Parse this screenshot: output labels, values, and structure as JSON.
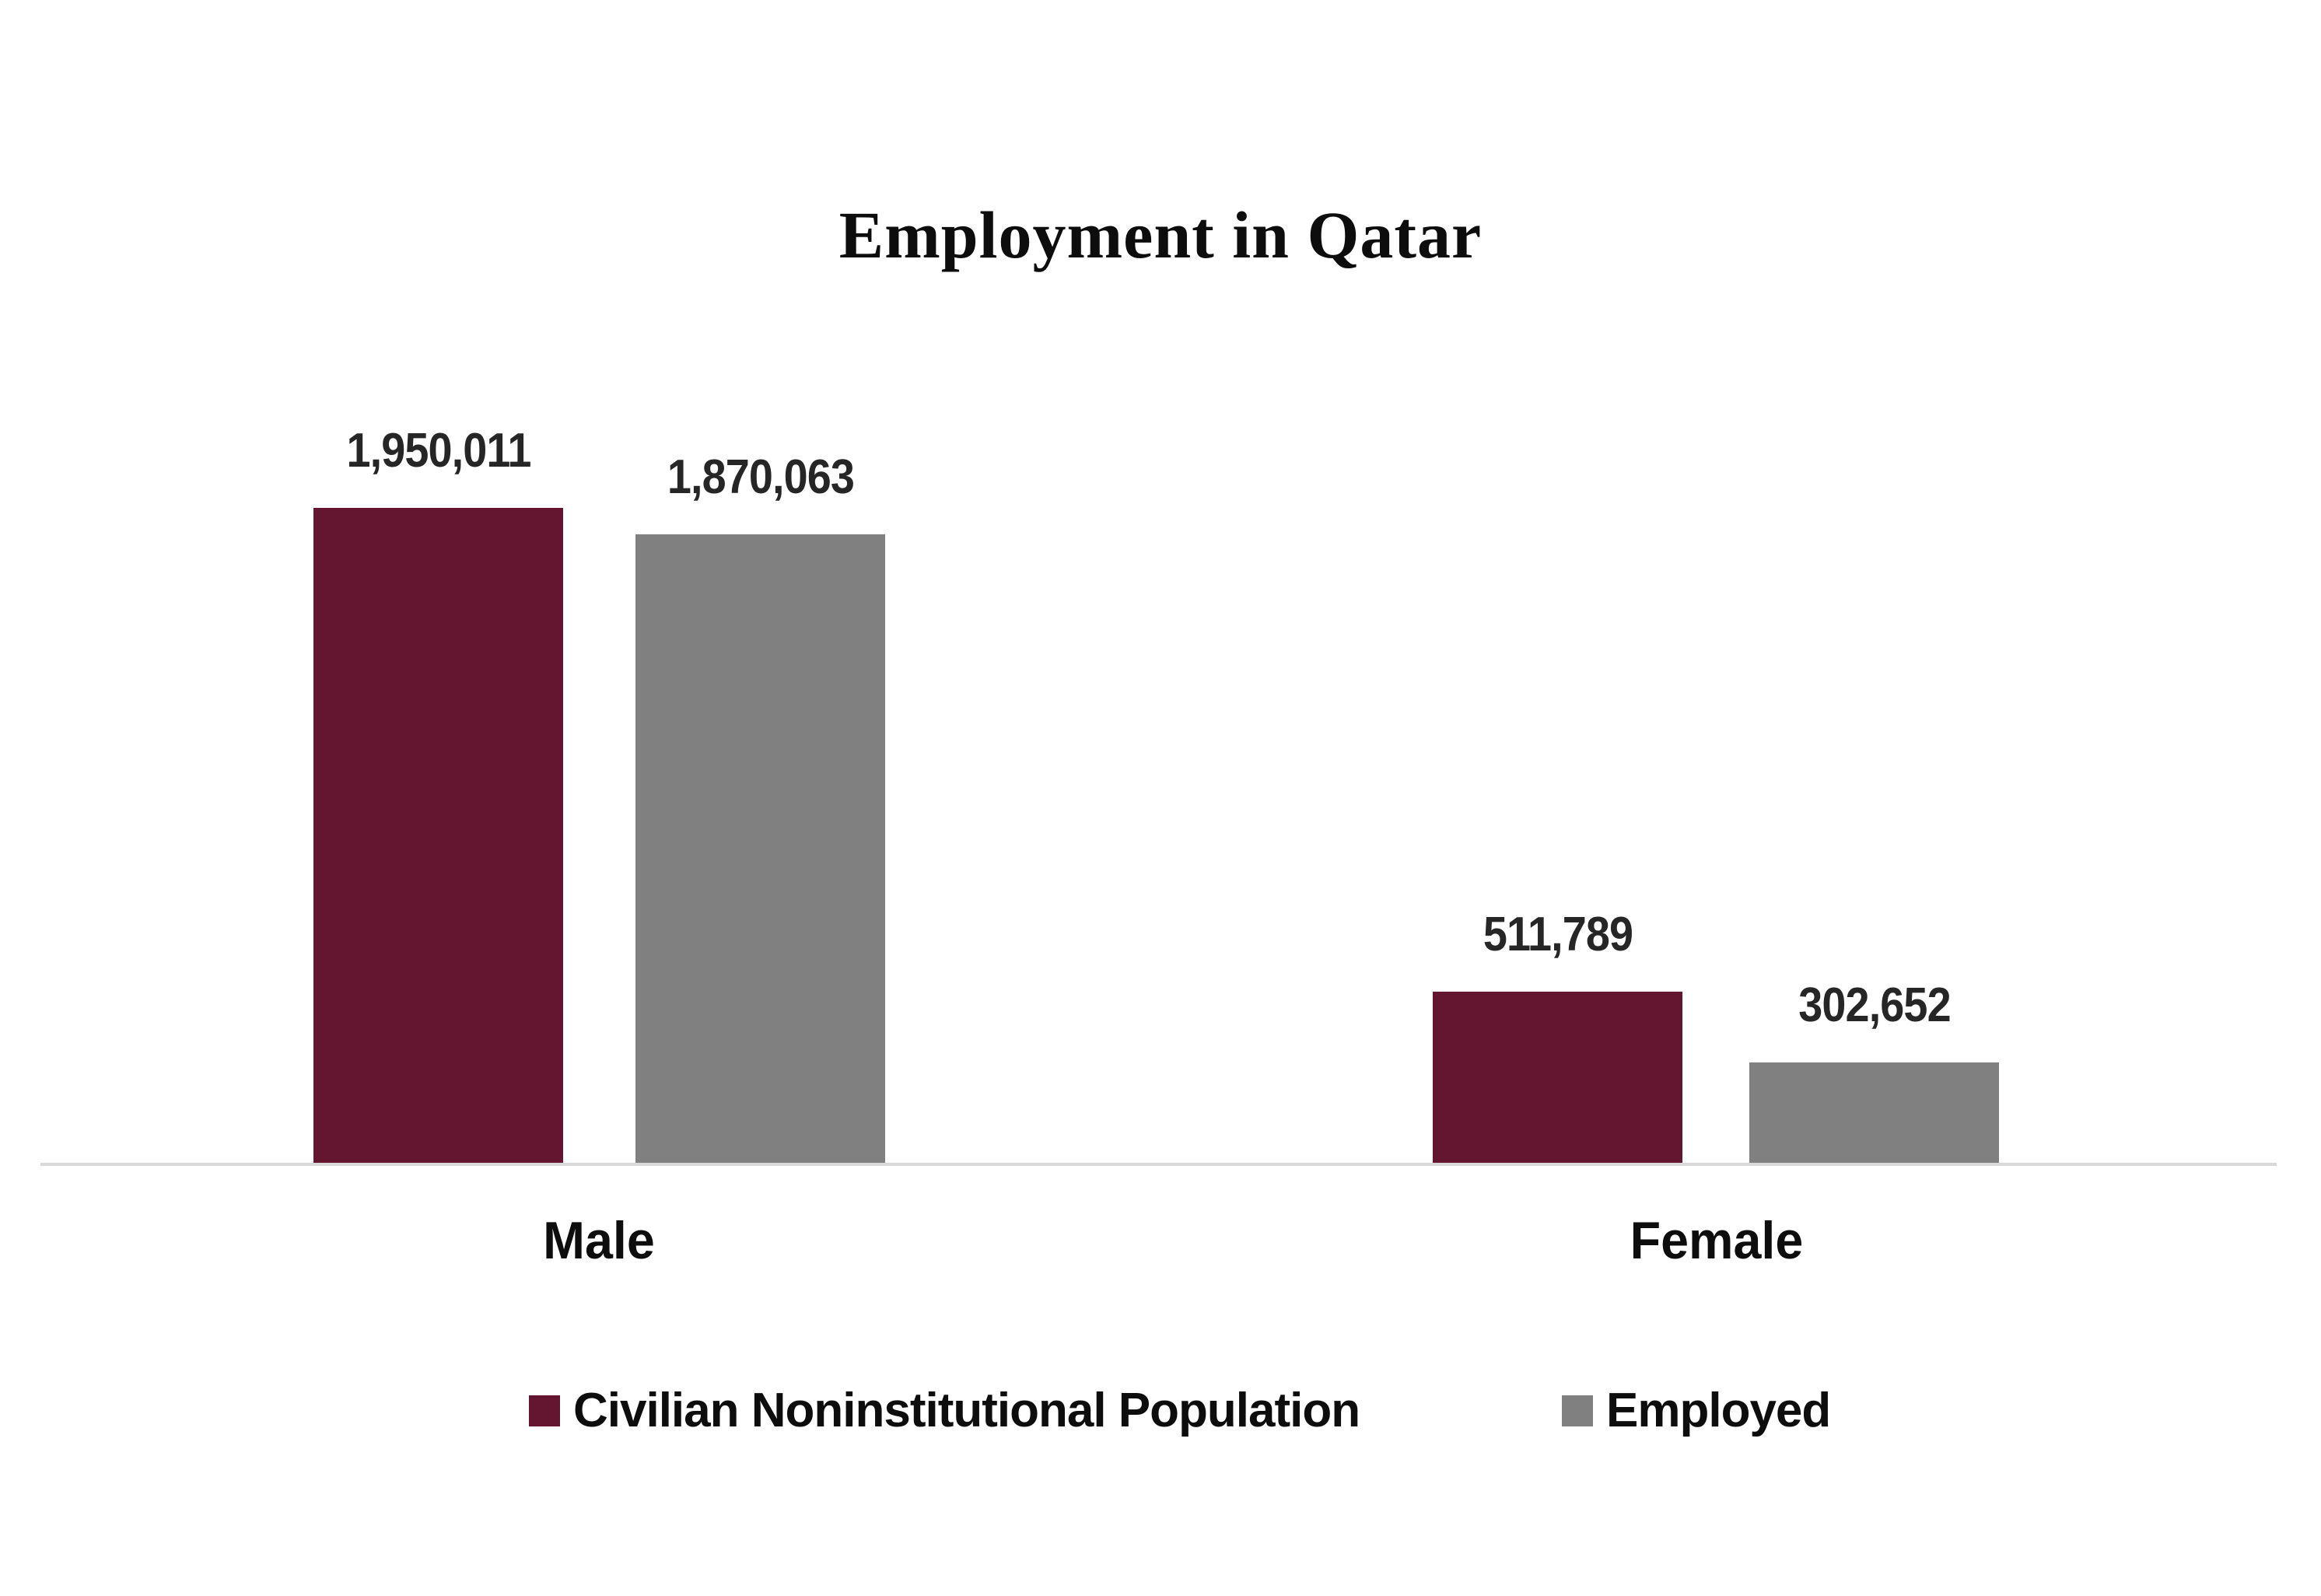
{
  "chart_data": {
    "type": "bar",
    "title": "Employment in Qatar",
    "xlabel": "",
    "ylabel": "",
    "categories": [
      "Male",
      "Female"
    ],
    "series": [
      {
        "name": "Civilian Noninstitutional Population",
        "color": "#641630",
        "values": [
          1950011,
          511789
        ],
        "labels": [
          "1,950,011",
          "511,789"
        ]
      },
      {
        "name": "Employed",
        "color": "#808080",
        "values": [
          1870063,
          302652
        ],
        "labels": [
          "1,870,063",
          "302,652"
        ]
      }
    ],
    "ylim": [
      0,
      2310000
    ],
    "grid": false,
    "y_axis_visible": false,
    "data_labels": true,
    "legend_position": "bottom"
  },
  "colors": {
    "series_1": "#641630",
    "series_2": "#808080",
    "axis": "#d9d9d9",
    "background": "#ffffff"
  }
}
